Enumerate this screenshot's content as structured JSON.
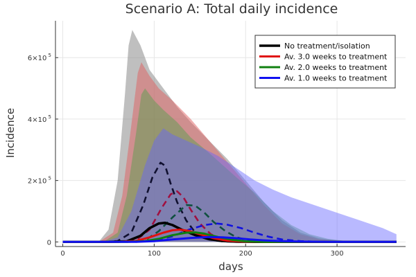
{
  "chart_data": {
    "type": "line",
    "title": "Scenario A: Total daily incidence",
    "xlabel": "days",
    "ylabel": "Incidence",
    "xlim": [
      -8,
      375
    ],
    "ylim": [
      -15000,
      720000
    ],
    "x_ticks": [
      0,
      100,
      200,
      300
    ],
    "x_tick_labels": [
      "0",
      "100",
      "200",
      "300"
    ],
    "y_ticks": [
      0,
      200000,
      400000,
      600000
    ],
    "y_tick_labels": [
      {
        "base": "0",
        "exp": ""
      },
      {
        "base": "2×10",
        "exp": "5"
      },
      {
        "base": "4×10",
        "exp": "5"
      },
      {
        "base": "6×10",
        "exp": "5"
      }
    ],
    "grid": true,
    "legend_position": "top-right",
    "bands": [
      {
        "color": "#808080",
        "opacity": 0.5,
        "upper": [
          [
            0,
            0
          ],
          [
            40,
            3000
          ],
          [
            50,
            40000
          ],
          [
            60,
            200000
          ],
          [
            68,
            480000
          ],
          [
            72,
            640000
          ],
          [
            76,
            690000
          ],
          [
            85,
            640000
          ],
          [
            95,
            560000
          ],
          [
            110,
            500000
          ],
          [
            125,
            440000
          ],
          [
            140,
            390000
          ],
          [
            160,
            330000
          ],
          [
            180,
            270000
          ],
          [
            200,
            200000
          ],
          [
            220,
            130000
          ],
          [
            240,
            70000
          ],
          [
            260,
            30000
          ],
          [
            280,
            12000
          ],
          [
            300,
            5000
          ],
          [
            320,
            2000
          ],
          [
            345,
            0
          ],
          [
            365,
            0
          ]
        ],
        "lower": [
          [
            0,
            0
          ],
          [
            365,
            0
          ]
        ]
      },
      {
        "color": "#e06060",
        "opacity": 0.5,
        "upper": [
          [
            0,
            0
          ],
          [
            40,
            1000
          ],
          [
            55,
            30000
          ],
          [
            65,
            150000
          ],
          [
            75,
            380000
          ],
          [
            82,
            550000
          ],
          [
            86,
            585000
          ],
          [
            95,
            540000
          ],
          [
            105,
            500000
          ],
          [
            120,
            460000
          ],
          [
            140,
            400000
          ],
          [
            160,
            330000
          ],
          [
            180,
            260000
          ],
          [
            200,
            190000
          ],
          [
            220,
            120000
          ],
          [
            240,
            60000
          ],
          [
            260,
            25000
          ],
          [
            280,
            9000
          ],
          [
            300,
            3000
          ],
          [
            330,
            0
          ],
          [
            365,
            0
          ]
        ],
        "lower": [
          [
            0,
            0
          ],
          [
            365,
            0
          ]
        ]
      },
      {
        "color": "#40a040",
        "opacity": 0.4,
        "upper": [
          [
            0,
            0
          ],
          [
            45,
            1000
          ],
          [
            60,
            30000
          ],
          [
            70,
            150000
          ],
          [
            80,
            350000
          ],
          [
            86,
            480000
          ],
          [
            90,
            500000
          ],
          [
            100,
            460000
          ],
          [
            110,
            430000
          ],
          [
            125,
            390000
          ],
          [
            140,
            340000
          ],
          [
            160,
            290000
          ],
          [
            175,
            250000
          ],
          [
            190,
            210000
          ],
          [
            210,
            160000
          ],
          [
            230,
            100000
          ],
          [
            250,
            55000
          ],
          [
            270,
            25000
          ],
          [
            290,
            10000
          ],
          [
            310,
            3000
          ],
          [
            340,
            0
          ],
          [
            365,
            0
          ]
        ],
        "lower": [
          [
            0,
            0
          ],
          [
            365,
            0
          ]
        ]
      },
      {
        "color": "#6464ff",
        "opacity": 0.45,
        "upper": [
          [
            0,
            0
          ],
          [
            45,
            500
          ],
          [
            60,
            15000
          ],
          [
            75,
            100000
          ],
          [
            90,
            250000
          ],
          [
            100,
            330000
          ],
          [
            110,
            370000
          ],
          [
            120,
            350000
          ],
          [
            135,
            330000
          ],
          [
            150,
            310000
          ],
          [
            170,
            280000
          ],
          [
            190,
            240000
          ],
          [
            210,
            200000
          ],
          [
            230,
            170000
          ],
          [
            250,
            145000
          ],
          [
            270,
            125000
          ],
          [
            290,
            105000
          ],
          [
            310,
            85000
          ],
          [
            330,
            65000
          ],
          [
            350,
            45000
          ],
          [
            365,
            25000
          ]
        ],
        "lower": [
          [
            0,
            0
          ],
          [
            365,
            0
          ]
        ]
      }
    ],
    "series": [
      {
        "name": "No treatment/isolation",
        "color": "#000000",
        "width": 3.5,
        "values": [
          [
            0,
            0
          ],
          [
            50,
            200
          ],
          [
            70,
            2000
          ],
          [
            85,
            20000
          ],
          [
            95,
            45000
          ],
          [
            105,
            60000
          ],
          [
            112,
            62000
          ],
          [
            120,
            55000
          ],
          [
            130,
            40000
          ],
          [
            145,
            22000
          ],
          [
            160,
            9000
          ],
          [
            175,
            3000
          ],
          [
            190,
            800
          ],
          [
            210,
            100
          ],
          [
            240,
            0
          ],
          [
            365,
            0
          ]
        ]
      },
      {
        "name": "Av. 3.0 weeks to treatment",
        "color": "#e01010",
        "width": 3,
        "values": [
          [
            0,
            0
          ],
          [
            60,
            200
          ],
          [
            80,
            3000
          ],
          [
            95,
            15000
          ],
          [
            110,
            30000
          ],
          [
            120,
            38000
          ],
          [
            128,
            40000
          ],
          [
            138,
            36000
          ],
          [
            150,
            25000
          ],
          [
            165,
            12000
          ],
          [
            180,
            4000
          ],
          [
            200,
            700
          ],
          [
            230,
            0
          ],
          [
            365,
            0
          ]
        ]
      },
      {
        "name": "Av. 2.0 weeks to treatment",
        "color": "#108010",
        "width": 3,
        "values": [
          [
            0,
            0
          ],
          [
            70,
            200
          ],
          [
            90,
            2500
          ],
          [
            105,
            10000
          ],
          [
            120,
            22000
          ],
          [
            135,
            30000
          ],
          [
            145,
            31000
          ],
          [
            155,
            27000
          ],
          [
            170,
            16000
          ],
          [
            185,
            7000
          ],
          [
            200,
            2000
          ],
          [
            220,
            300
          ],
          [
            250,
            0
          ],
          [
            365,
            0
          ]
        ]
      },
      {
        "name": "Av. 1.0 weeks to treatment",
        "color": "#1010f0",
        "width": 3,
        "values": [
          [
            0,
            0
          ],
          [
            80,
            300
          ],
          [
            100,
            2500
          ],
          [
            120,
            8000
          ],
          [
            140,
            13000
          ],
          [
            160,
            16000
          ],
          [
            175,
            15000
          ],
          [
            190,
            12000
          ],
          [
            205,
            8000
          ],
          [
            220,
            5000
          ],
          [
            240,
            2500
          ],
          [
            260,
            1000
          ],
          [
            290,
            200
          ],
          [
            320,
            0
          ],
          [
            365,
            0
          ]
        ]
      }
    ],
    "dashed_series": [
      {
        "color": "#101030",
        "values": [
          [
            45,
            0
          ],
          [
            60,
            3000
          ],
          [
            75,
            30000
          ],
          [
            88,
            120000
          ],
          [
            98,
            210000
          ],
          [
            107,
            258000
          ],
          [
            112,
            248000
          ],
          [
            118,
            190000
          ],
          [
            125,
            130000
          ],
          [
            135,
            70000
          ],
          [
            145,
            30000
          ],
          [
            160,
            8000
          ],
          [
            175,
            1500
          ],
          [
            195,
            0
          ]
        ]
      },
      {
        "color": "#a01040",
        "values": [
          [
            60,
            0
          ],
          [
            80,
            5000
          ],
          [
            95,
            40000
          ],
          [
            108,
            110000
          ],
          [
            118,
            155000
          ],
          [
            125,
            165000
          ],
          [
            132,
            145000
          ],
          [
            140,
            105000
          ],
          [
            150,
            60000
          ],
          [
            162,
            25000
          ],
          [
            175,
            8000
          ],
          [
            195,
            1000
          ],
          [
            215,
            0
          ]
        ]
      },
      {
        "color": "#105040",
        "values": [
          [
            70,
            0
          ],
          [
            90,
            5000
          ],
          [
            105,
            35000
          ],
          [
            120,
            80000
          ],
          [
            135,
            120000
          ],
          [
            145,
            118000
          ],
          [
            155,
            95000
          ],
          [
            165,
            65000
          ],
          [
            178,
            35000
          ],
          [
            190,
            15000
          ],
          [
            205,
            4000
          ],
          [
            225,
            500
          ],
          [
            245,
            0
          ]
        ]
      },
      {
        "color": "#1010e0",
        "values": [
          [
            80,
            0
          ],
          [
            100,
            4000
          ],
          [
            120,
            18000
          ],
          [
            138,
            40000
          ],
          [
            155,
            55000
          ],
          [
            168,
            60000
          ],
          [
            180,
            56000
          ],
          [
            195,
            45000
          ],
          [
            210,
            30000
          ],
          [
            225,
            17000
          ],
          [
            240,
            8000
          ],
          [
            260,
            2500
          ],
          [
            280,
            500
          ],
          [
            300,
            0
          ]
        ]
      }
    ]
  }
}
